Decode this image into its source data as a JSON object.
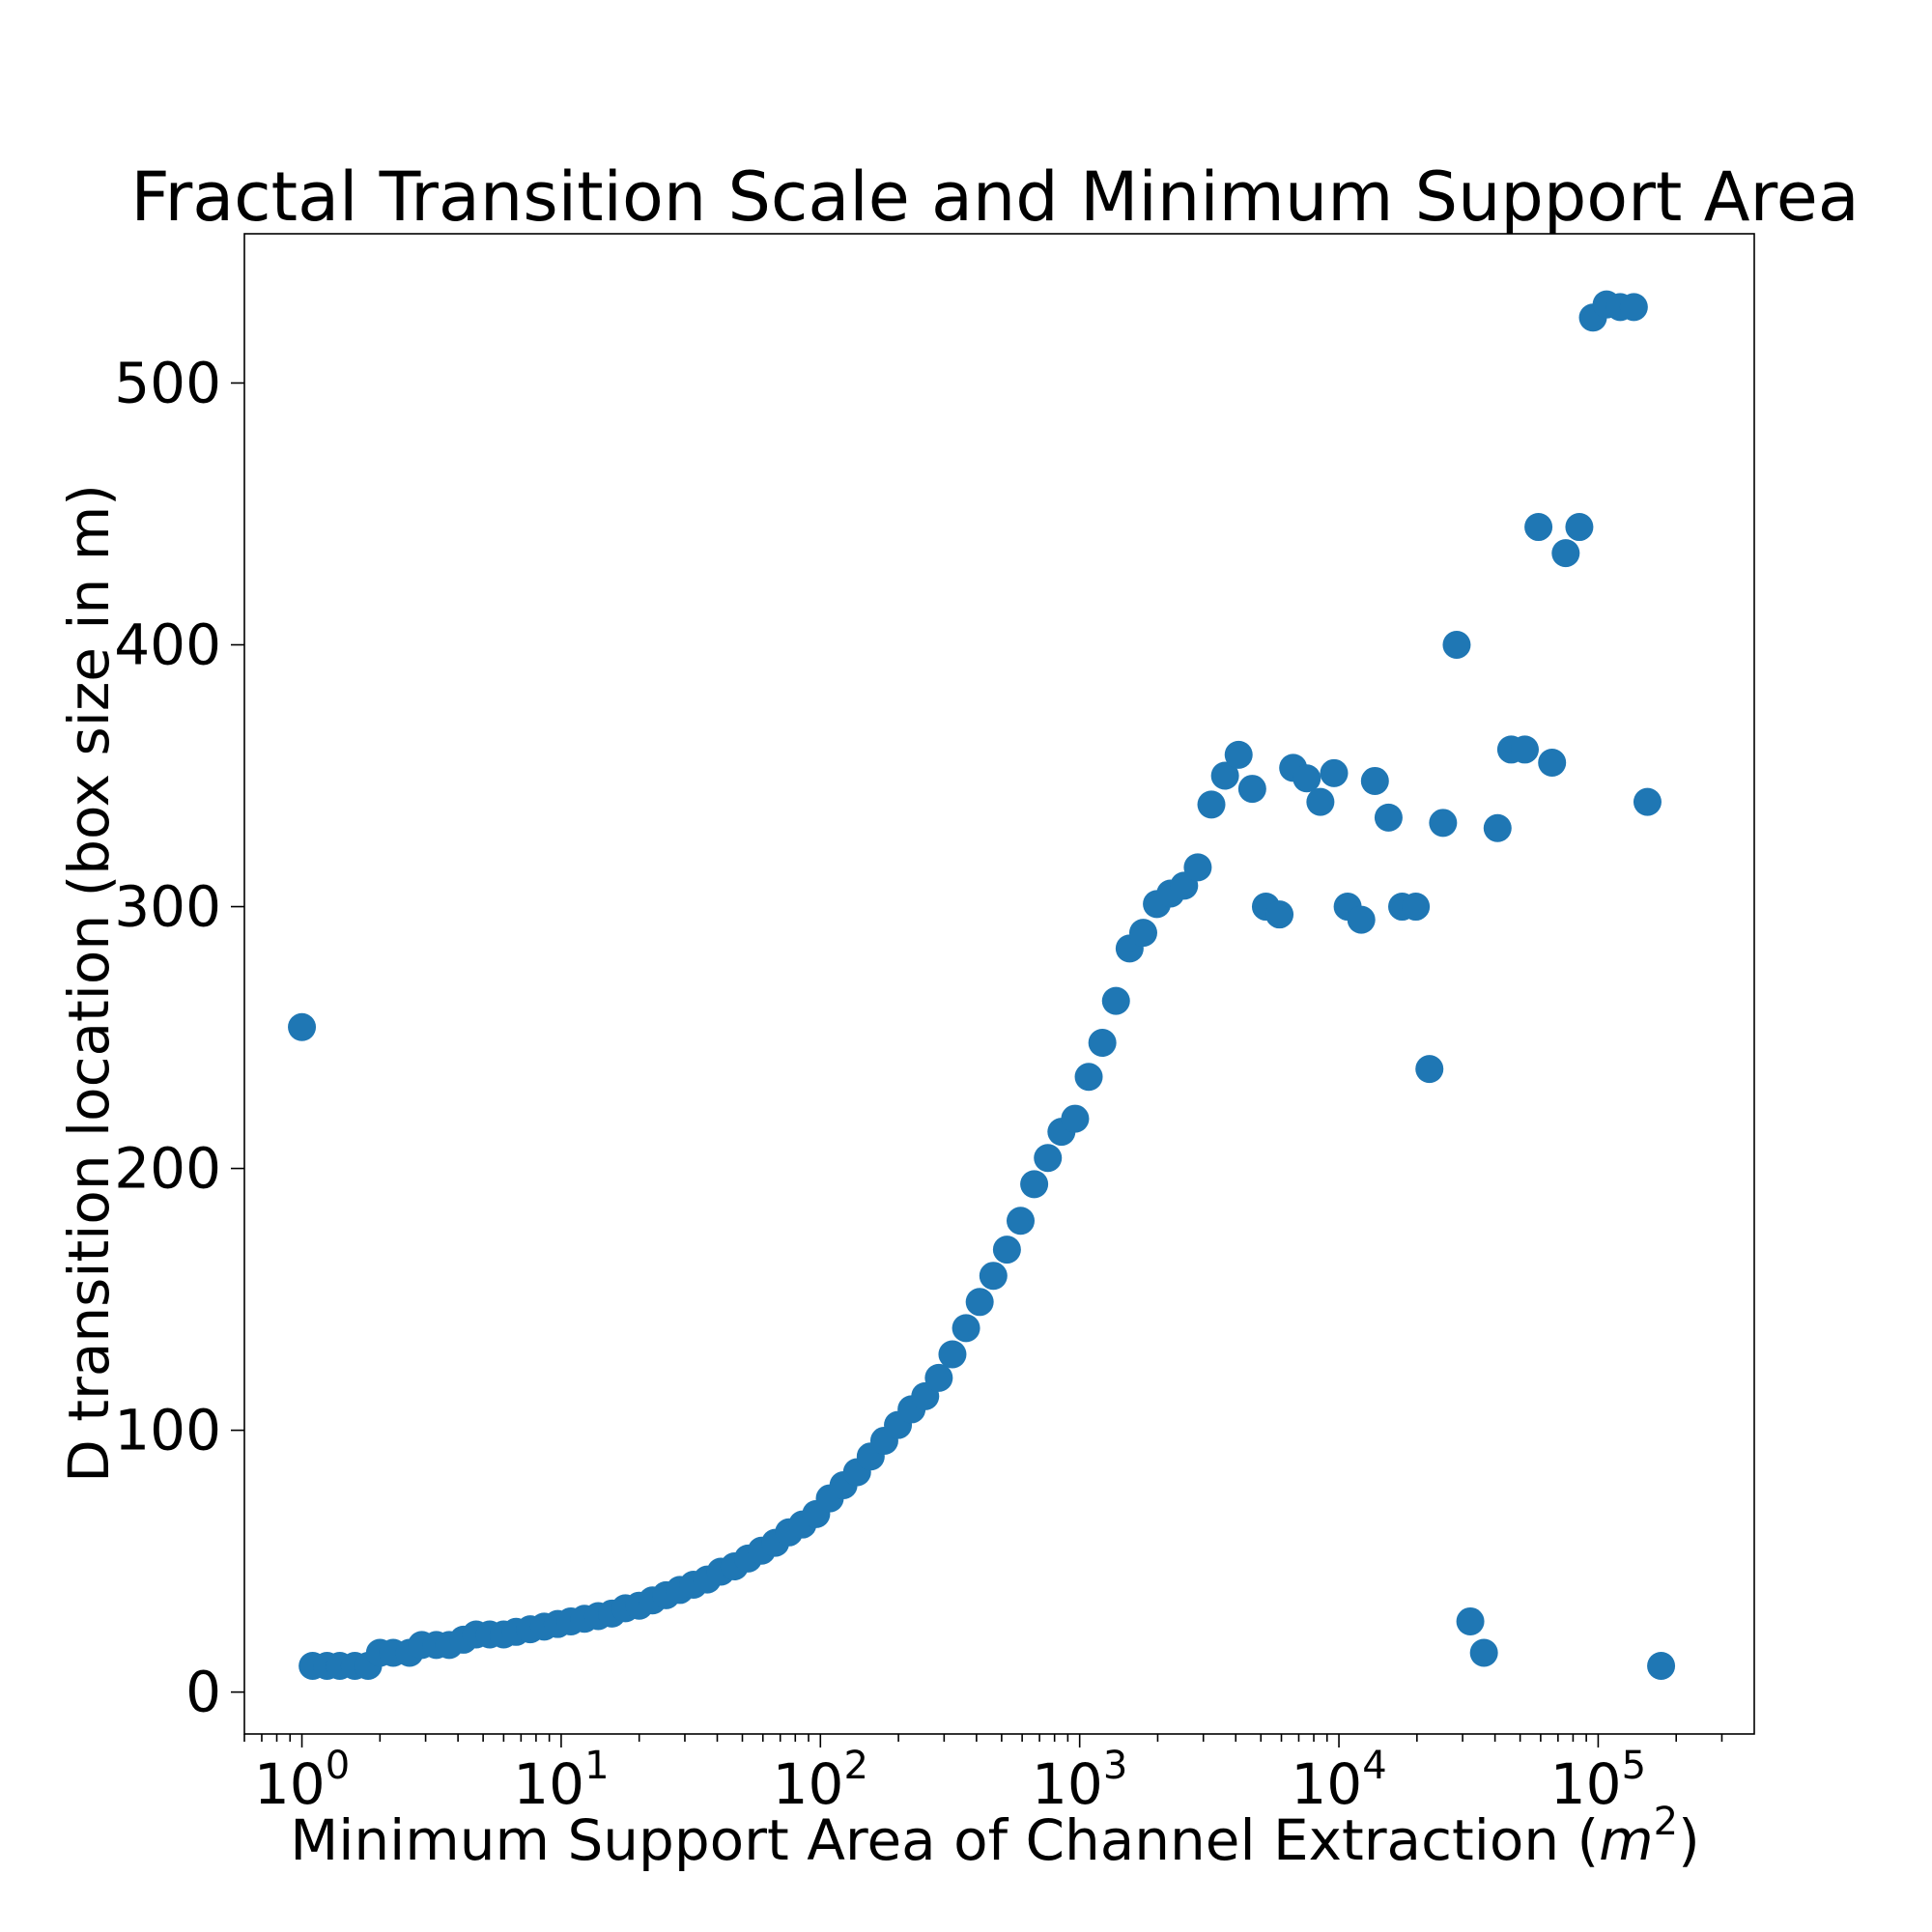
{
  "chart_data": {
    "type": "scatter",
    "title": "Fractal Transition Scale and Minimum Support Area",
    "xlabel": "Minimum Support Area of Channel Extraction (",
    "xlabel_unit": "m",
    "xlabel_unit_exp": "2",
    "xlabel_close": ")",
    "ylabel": "D transition location (box size in m)",
    "xscale": "log",
    "xlim": [
      0.6,
      400000
    ],
    "ylim": [
      -16,
      557
    ],
    "grid": false,
    "legend": "none",
    "color": "#1f77b4",
    "x_ticks": [
      {
        "value": 1,
        "base": "10",
        "exp": "0"
      },
      {
        "value": 10,
        "base": "10",
        "exp": "1"
      },
      {
        "value": 100,
        "base": "10",
        "exp": "2"
      },
      {
        "value": 1000,
        "base": "10",
        "exp": "3"
      },
      {
        "value": 10000,
        "base": "10",
        "exp": "4"
      },
      {
        "value": 100000,
        "base": "10",
        "exp": "5"
      }
    ],
    "y_ticks": [
      {
        "value": 0,
        "label": "0"
      },
      {
        "value": 100,
        "label": "100"
      },
      {
        "value": 200,
        "label": "200"
      },
      {
        "value": 300,
        "label": "300"
      },
      {
        "value": 400,
        "label": "400"
      },
      {
        "value": 500,
        "label": "500"
      }
    ],
    "points": [
      {
        "x": 1.0,
        "y": 254
      },
      {
        "x": 1.1,
        "y": 10
      },
      {
        "x": 1.25,
        "y": 10
      },
      {
        "x": 1.4,
        "y": 10
      },
      {
        "x": 1.6,
        "y": 10
      },
      {
        "x": 1.8,
        "y": 10
      },
      {
        "x": 2.0,
        "y": 15
      },
      {
        "x": 2.25,
        "y": 15
      },
      {
        "x": 2.6,
        "y": 15
      },
      {
        "x": 2.9,
        "y": 18
      },
      {
        "x": 3.3,
        "y": 18
      },
      {
        "x": 3.7,
        "y": 18
      },
      {
        "x": 4.2,
        "y": 20
      },
      {
        "x": 4.7,
        "y": 22
      },
      {
        "x": 5.3,
        "y": 22
      },
      {
        "x": 6.0,
        "y": 22
      },
      {
        "x": 6.7,
        "y": 23
      },
      {
        "x": 7.6,
        "y": 24
      },
      {
        "x": 8.6,
        "y": 25
      },
      {
        "x": 9.7,
        "y": 26
      },
      {
        "x": 10.9,
        "y": 27
      },
      {
        "x": 12.3,
        "y": 28
      },
      {
        "x": 13.9,
        "y": 29
      },
      {
        "x": 15.7,
        "y": 30
      },
      {
        "x": 17.7,
        "y": 32
      },
      {
        "x": 20,
        "y": 33
      },
      {
        "x": 22.5,
        "y": 35
      },
      {
        "x": 25.4,
        "y": 37
      },
      {
        "x": 28.7,
        "y": 39
      },
      {
        "x": 32.4,
        "y": 41
      },
      {
        "x": 36.6,
        "y": 43
      },
      {
        "x": 41.3,
        "y": 46
      },
      {
        "x": 46.6,
        "y": 48
      },
      {
        "x": 52.6,
        "y": 51
      },
      {
        "x": 59.3,
        "y": 54
      },
      {
        "x": 67,
        "y": 57
      },
      {
        "x": 75.6,
        "y": 61
      },
      {
        "x": 85.3,
        "y": 64
      },
      {
        "x": 96.3,
        "y": 68
      },
      {
        "x": 108.7,
        "y": 74
      },
      {
        "x": 122.7,
        "y": 79
      },
      {
        "x": 138.5,
        "y": 84
      },
      {
        "x": 156.3,
        "y": 90
      },
      {
        "x": 176.4,
        "y": 96
      },
      {
        "x": 199.1,
        "y": 102
      },
      {
        "x": 224.7,
        "y": 108
      },
      {
        "x": 253.6,
        "y": 113
      },
      {
        "x": 286.2,
        "y": 120
      },
      {
        "x": 323,
        "y": 129
      },
      {
        "x": 364.6,
        "y": 139
      },
      {
        "x": 411.5,
        "y": 149
      },
      {
        "x": 464.5,
        "y": 159
      },
      {
        "x": 524.2,
        "y": 169
      },
      {
        "x": 591.7,
        "y": 180
      },
      {
        "x": 667.8,
        "y": 194
      },
      {
        "x": 753.8,
        "y": 204
      },
      {
        "x": 850.7,
        "y": 214
      },
      {
        "x": 960.2,
        "y": 219
      },
      {
        "x": 1083.7,
        "y": 235
      },
      {
        "x": 1223.2,
        "y": 248
      },
      {
        "x": 1380.6,
        "y": 264
      },
      {
        "x": 1558.3,
        "y": 284
      },
      {
        "x": 1758.8,
        "y": 290
      },
      {
        "x": 1985.1,
        "y": 301
      },
      {
        "x": 2240.5,
        "y": 305
      },
      {
        "x": 2528.8,
        "y": 308
      },
      {
        "x": 2854.2,
        "y": 315
      },
      {
        "x": 3221.5,
        "y": 339
      },
      {
        "x": 3636,
        "y": 350
      },
      {
        "x": 4103.8,
        "y": 358
      },
      {
        "x": 4631.8,
        "y": 345
      },
      {
        "x": 5227.8,
        "y": 300
      },
      {
        "x": 5900.5,
        "y": 297
      },
      {
        "x": 6659.7,
        "y": 353
      },
      {
        "x": 7516.6,
        "y": 349
      },
      {
        "x": 8483.7,
        "y": 340
      },
      {
        "x": 9575.3,
        "y": 351
      },
      {
        "x": 10807.3,
        "y": 300
      },
      {
        "x": 12197.9,
        "y": 295
      },
      {
        "x": 13767.4,
        "y": 348
      },
      {
        "x": 15538.8,
        "y": 334
      },
      {
        "x": 17538.1,
        "y": 300
      },
      {
        "x": 19794.8,
        "y": 300
      },
      {
        "x": 22341.8,
        "y": 238
      },
      {
        "x": 25216.5,
        "y": 332
      },
      {
        "x": 28461,
        "y": 400
      },
      {
        "x": 32123.1,
        "y": 27
      },
      {
        "x": 36256.3,
        "y": 15
      },
      {
        "x": 40921.4,
        "y": 330
      },
      {
        "x": 46186.7,
        "y": 360
      },
      {
        "x": 52129.6,
        "y": 360
      },
      {
        "x": 58837,
        "y": 445
      },
      {
        "x": 66407.4,
        "y": 355
      },
      {
        "x": 74952,
        "y": 435
      },
      {
        "x": 84596,
        "y": 445
      },
      {
        "x": 95480.9,
        "y": 525
      },
      {
        "x": 107766,
        "y": 530
      },
      {
        "x": 121632,
        "y": 529
      },
      {
        "x": 137282,
        "y": 529
      },
      {
        "x": 154946,
        "y": 340
      },
      {
        "x": 174883,
        "y": 10
      }
    ]
  }
}
